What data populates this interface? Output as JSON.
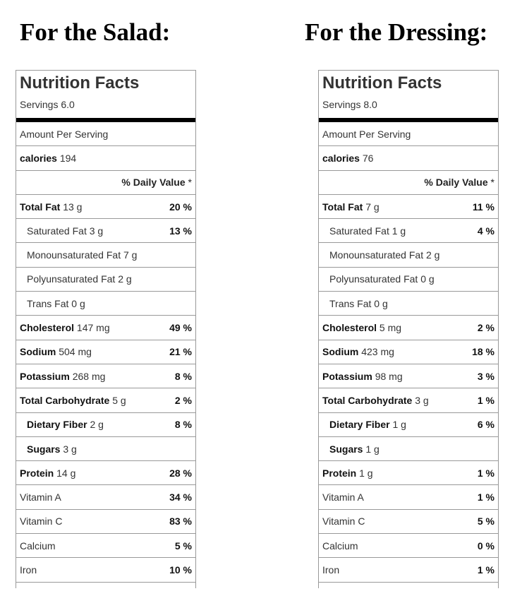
{
  "headings": {
    "salad": "For the Salad:",
    "dressing": "For the Dressing:"
  },
  "salad": {
    "title": "Nutrition Facts",
    "servings": "Servings 6.0",
    "amount_per_serving": "Amount Per Serving",
    "calories_label": "calories",
    "calories_value": "194",
    "daily_value_header": "% Daily Value",
    "daily_value_star": "*",
    "nutrients": [
      {
        "label": "Total Fat",
        "amount": "13 g",
        "dv": "20 %",
        "bold": true,
        "indent": false
      },
      {
        "label": "Saturated Fat",
        "amount": "3 g",
        "dv": "13 %",
        "bold": false,
        "indent": true
      },
      {
        "label": "Monounsaturated Fat",
        "amount": "7 g",
        "dv": "",
        "bold": false,
        "indent": true
      },
      {
        "label": "Polyunsaturated Fat",
        "amount": "2 g",
        "dv": "",
        "bold": false,
        "indent": true
      },
      {
        "label": "Trans Fat",
        "amount": "0 g",
        "dv": "",
        "bold": false,
        "indent": true
      },
      {
        "label": "Cholesterol",
        "amount": "147 mg",
        "dv": "49 %",
        "bold": true,
        "indent": false
      },
      {
        "label": "Sodium",
        "amount": "504 mg",
        "dv": "21 %",
        "bold": true,
        "indent": false
      },
      {
        "label": "Potassium",
        "amount": "268 mg",
        "dv": "8 %",
        "bold": true,
        "indent": false
      },
      {
        "label": "Total Carbohydrate",
        "amount": "5 g",
        "dv": "2 %",
        "bold": true,
        "indent": false
      },
      {
        "label": "Dietary Fiber",
        "amount": "2 g",
        "dv": "8 %",
        "bold": true,
        "indent": true
      },
      {
        "label": "Sugars",
        "amount": "3 g",
        "dv": "",
        "bold": true,
        "indent": true
      },
      {
        "label": "Protein",
        "amount": "14 g",
        "dv": "28 %",
        "bold": true,
        "indent": false
      },
      {
        "label": "Vitamin A",
        "amount": "",
        "dv": "34 %",
        "bold": false,
        "indent": false
      },
      {
        "label": "Vitamin C",
        "amount": "",
        "dv": "83 %",
        "bold": false,
        "indent": false
      },
      {
        "label": "Calcium",
        "amount": "",
        "dv": "5 %",
        "bold": false,
        "indent": false
      },
      {
        "label": "Iron",
        "amount": "",
        "dv": "10 %",
        "bold": false,
        "indent": false
      }
    ]
  },
  "dressing": {
    "title": "Nutrition Facts",
    "servings": "Servings 8.0",
    "amount_per_serving": "Amount Per Serving",
    "calories_label": "calories",
    "calories_value": "76",
    "daily_value_header": "% Daily Value",
    "daily_value_star": "*",
    "nutrients": [
      {
        "label": "Total Fat",
        "amount": "7 g",
        "dv": "11 %",
        "bold": true,
        "indent": false
      },
      {
        "label": "Saturated Fat",
        "amount": "1 g",
        "dv": "4 %",
        "bold": false,
        "indent": true
      },
      {
        "label": "Monounsaturated Fat",
        "amount": "2 g",
        "dv": "",
        "bold": false,
        "indent": true
      },
      {
        "label": "Polyunsaturated Fat",
        "amount": "0 g",
        "dv": "",
        "bold": false,
        "indent": true
      },
      {
        "label": "Trans Fat",
        "amount": "0 g",
        "dv": "",
        "bold": false,
        "indent": true
      },
      {
        "label": "Cholesterol",
        "amount": "5 mg",
        "dv": "2 %",
        "bold": true,
        "indent": false
      },
      {
        "label": "Sodium",
        "amount": "423 mg",
        "dv": "18 %",
        "bold": true,
        "indent": false
      },
      {
        "label": "Potassium",
        "amount": "98 mg",
        "dv": "3 %",
        "bold": true,
        "indent": false
      },
      {
        "label": "Total Carbohydrate",
        "amount": "3 g",
        "dv": "1 %",
        "bold": true,
        "indent": false
      },
      {
        "label": "Dietary Fiber",
        "amount": "1 g",
        "dv": "6 %",
        "bold": true,
        "indent": true
      },
      {
        "label": "Sugars",
        "amount": "1 g",
        "dv": "",
        "bold": true,
        "indent": true
      },
      {
        "label": "Protein",
        "amount": "1 g",
        "dv": "1 %",
        "bold": true,
        "indent": false
      },
      {
        "label": "Vitamin A",
        "amount": "",
        "dv": "1 %",
        "bold": false,
        "indent": false
      },
      {
        "label": "Vitamin C",
        "amount": "",
        "dv": "5 %",
        "bold": false,
        "indent": false
      },
      {
        "label": "Calcium",
        "amount": "",
        "dv": "0 %",
        "bold": false,
        "indent": false
      },
      {
        "label": "Iron",
        "amount": "",
        "dv": "1 %",
        "bold": false,
        "indent": false
      }
    ]
  }
}
